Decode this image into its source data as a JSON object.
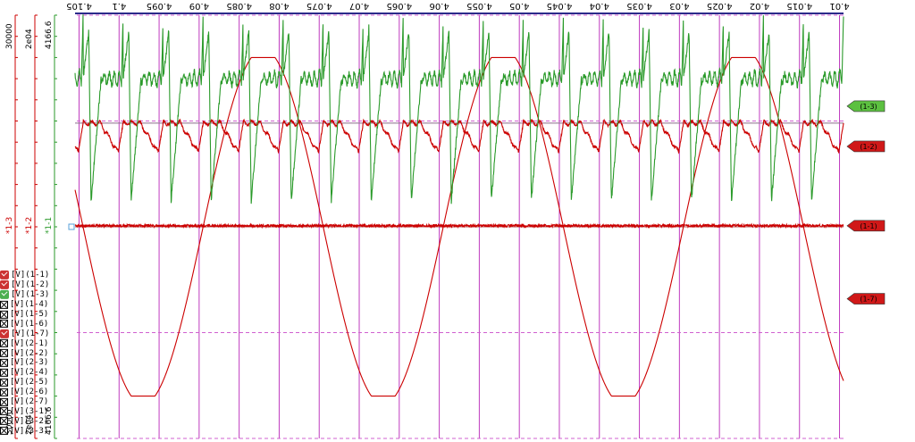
{
  "chart_data": {
    "type": "line",
    "x": {
      "unit": "s",
      "range": [
        4.0095,
        4.1055
      ],
      "tick_labels": [
        "4.01",
        "4.015",
        "4.02",
        "4.025",
        "4.03",
        "4.035",
        "4.04",
        "4.045",
        "4.05",
        "4.055",
        "4.06",
        "4.065",
        "4.07",
        "4.075",
        "4.08",
        "4.085",
        "4.09",
        "4.095",
        "4.1",
        "4.105"
      ],
      "tick_values": [
        4.01,
        4.015,
        4.02,
        4.025,
        4.03,
        4.035,
        4.04,
        4.045,
        4.05,
        4.055,
        4.06,
        4.065,
        4.07,
        4.075,
        4.08,
        4.085,
        4.09,
        4.095,
        4.1,
        4.105
      ]
    },
    "y_axes": [
      {
        "name": "axis-1",
        "color": "#2a9a2a",
        "top_label": "4166.6",
        "bottom_label": "4166.6",
        "marker": "1-1"
      },
      {
        "name": "axis-2",
        "color": "#cc0000",
        "top_label": "2e04",
        "bottom_label": "2e04",
        "marker": "1-2"
      },
      {
        "name": "axis-3",
        "color": "#cc0000",
        "top_label": "30000",
        "bottom_label": "30000",
        "marker": "1-3"
      }
    ],
    "grid": true,
    "series": [
      {
        "name": "(1-7)",
        "color": "#cc0000",
        "shape": "sine",
        "period": 0.03,
        "phase_peak": 4.037,
        "min": -0.8,
        "max": 0.8,
        "level": 0.0
      },
      {
        "name": "(1-1)",
        "color": "#cc0000",
        "shape": "noise_flat",
        "level": -0.005,
        "noise": 0.012
      },
      {
        "name": "(1-2)",
        "color": "#cc0000",
        "shape": "ripple",
        "period": 0.005,
        "base": -0.49,
        "peak": -0.35
      },
      {
        "name": "(1-3)",
        "color": "#2a9a2a",
        "shape": "spike",
        "period": 0.005,
        "base": -0.7,
        "peak": -0.12,
        "trough": -1.0
      }
    ]
  },
  "traces": {
    "tags": [
      "(1-7)",
      "(1-1)",
      "(1-2)",
      "(1-3)"
    ]
  },
  "legend": {
    "items": [
      {
        "label": "[V](1-1)",
        "state": "on",
        "color": "#cc3333"
      },
      {
        "label": "[V](1-2)",
        "state": "on",
        "color": "#cc3333"
      },
      {
        "label": "[V](1-3)",
        "state": "on",
        "color": "#4caf50"
      },
      {
        "label": "[V](1-4)",
        "state": "off"
      },
      {
        "label": "[V](1-5)",
        "state": "off"
      },
      {
        "label": "[V](1-6)",
        "state": "off"
      },
      {
        "label": "[V](1-7)",
        "state": "on",
        "color": "#cc3333"
      },
      {
        "label": "[V](2-1)",
        "state": "off"
      },
      {
        "label": "[V](2-2)",
        "state": "off"
      },
      {
        "label": "[V](2-3)",
        "state": "off"
      },
      {
        "label": "[V](2-4)",
        "state": "off"
      },
      {
        "label": "[V](2-5)",
        "state": "off"
      },
      {
        "label": "[V](2-6)",
        "state": "off"
      },
      {
        "label": "[V](2-7)",
        "state": "off"
      },
      {
        "label": "[V](3-1)",
        "state": "off"
      },
      {
        "label": "[V](3-2)",
        "state": "off"
      },
      {
        "label": "[V](3-3)",
        "state": "off"
      }
    ]
  },
  "colors": {
    "grid_v": "#c03cc0",
    "grid_h": "#d060d0",
    "zero_line": "#b05050",
    "top_bar": "#2b2b8a",
    "red": "#cc0000",
    "green": "#2a9a2a",
    "marker": "#5aa0d8"
  }
}
